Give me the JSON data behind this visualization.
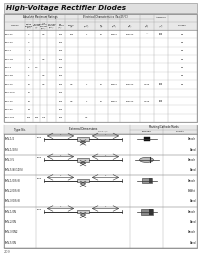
{
  "title": "High-Voltage Rectifier Diodes",
  "white": "#ffffff",
  "light_gray": "#e8e8e8",
  "mid_gray": "#c8c8c8",
  "dark": "#222222",
  "page_num": "209",
  "top_table": {
    "type_nos": [
      "SHV-02",
      "SHV-03",
      "SHV-1",
      "SHV-1N",
      "SHV-5",
      "SHV-5N",
      "SHV-10",
      "SHV-10N",
      "SHV-20",
      "SHV-30",
      "SHV-100"
    ],
    "n_rows": 11,
    "n_cols": 14
  },
  "bottom_groups": [
    {
      "pkg": "Fu-B",
      "dim_rows": [
        "SHV-1/2",
        "SHV-1/2(S)"
      ],
      "has_dim_row": 0,
      "mark_type": "chip_small",
      "polarity_rows": [
        "Anode",
        "Band"
      ]
    },
    {
      "pkg": "Fu-B",
      "dim_rows": [
        "SHV-3/5",
        "SHV-5(S)/10(S)"
      ],
      "has_dim_row": 0,
      "mark_type": "oval",
      "polarity_rows": [
        "Anode",
        "Band"
      ]
    },
    {
      "pkg": "Fu-B",
      "dim_rows": [
        "SHV-1/0(S)N",
        "SHV-2/0(S)N",
        "SHV-3/0(S)N"
      ],
      "has_dim_row": 0,
      "mark_type": "stripe_box",
      "polarity_rows": [
        "Anode",
        "B/Wht",
        "Band"
      ]
    },
    {
      "pkg": "Fu-B",
      "dim_rows": [
        "SHV-1/0N",
        "SHV-2/0N",
        "SHV-3/0N2",
        "SHV-5/0N"
      ],
      "has_dim_row": 0,
      "mark_type": "rect_box",
      "polarity_rows": [
        "Anode",
        "Band",
        "Anode",
        "Band"
      ]
    }
  ]
}
